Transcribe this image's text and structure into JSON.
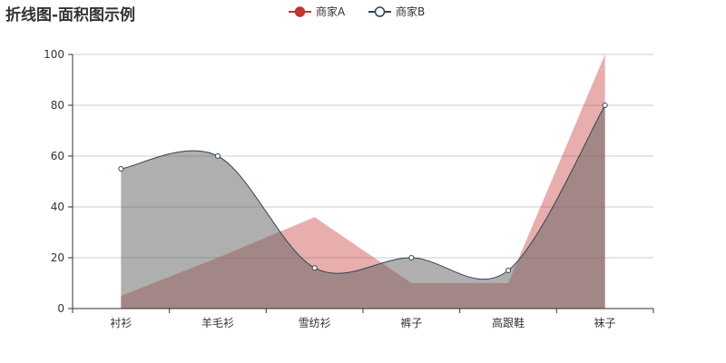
{
  "chart_data": {
    "type": "area",
    "title": "折线图-面积图示例",
    "categories": [
      "衬衫",
      "羊毛衫",
      "雪纺衫",
      "裤子",
      "高跟鞋",
      "袜子"
    ],
    "ylim": [
      0,
      100
    ],
    "yticks": [
      0,
      20,
      40,
      60,
      80,
      100
    ],
    "grid": true,
    "legend_position": "top-center",
    "series": [
      {
        "name": "商家A",
        "values": [
          5,
          20,
          36,
          10,
          10,
          100
        ],
        "color": "#c23531",
        "smooth": false,
        "symbol": "none"
      },
      {
        "name": "商家B",
        "values": [
          55,
          60,
          16,
          20,
          15,
          80
        ],
        "color": "#2f4554",
        "smooth": true,
        "symbol": "circle"
      }
    ]
  }
}
